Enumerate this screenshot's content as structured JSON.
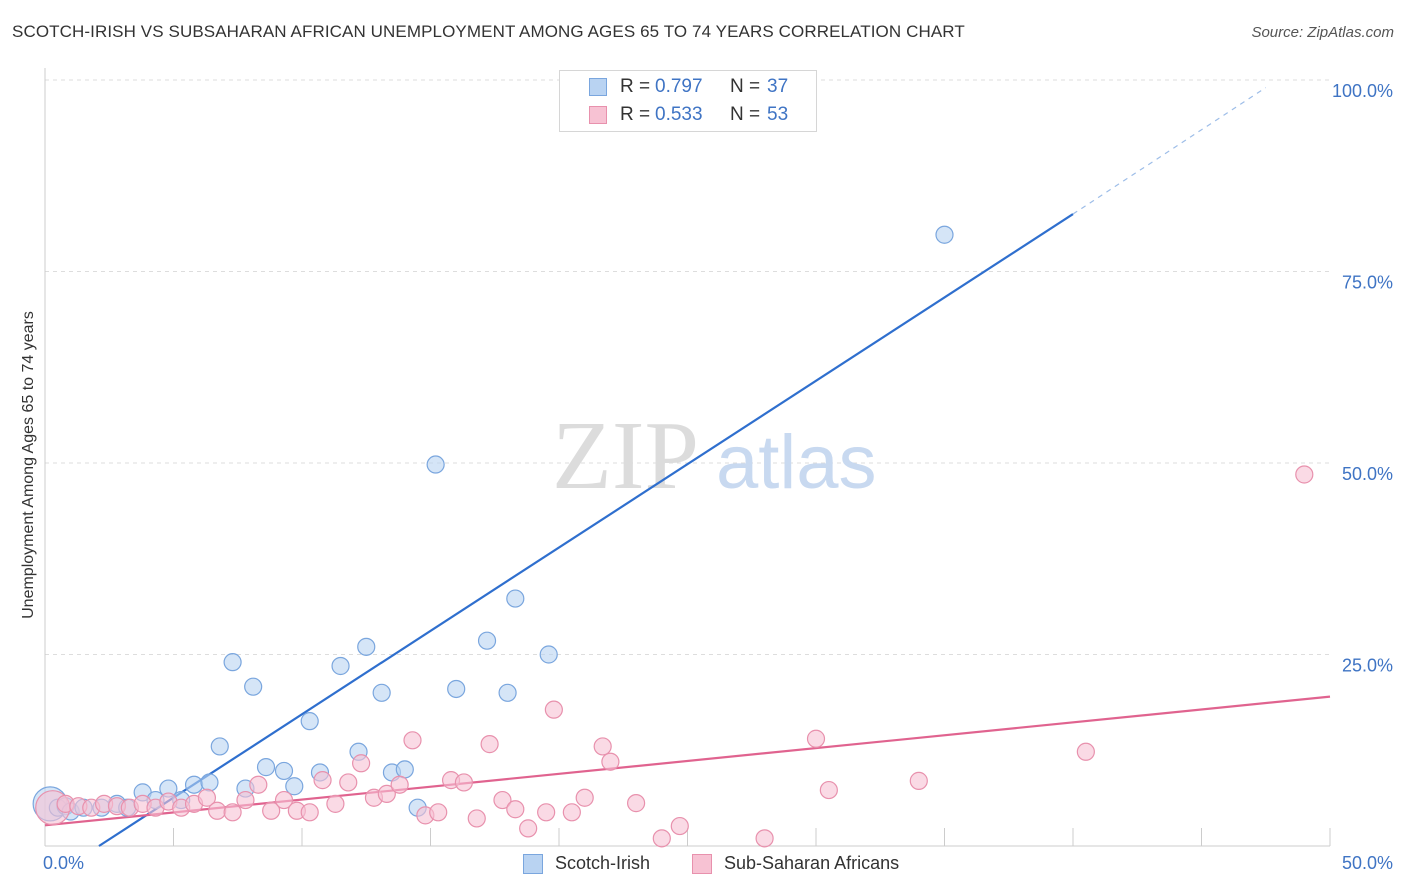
{
  "header": {
    "title": "SCOTCH-IRISH VS SUBSAHARAN AFRICAN UNEMPLOYMENT AMONG AGES 65 TO 74 YEARS CORRELATION CHART",
    "source": "Source: ZipAtlas.com"
  },
  "watermark": {
    "zip": "ZIP",
    "atlas": "atlas"
  },
  "legend_top": {
    "rows": [
      {
        "r_label": "R = ",
        "r_value": "0.797",
        "n_label": "N = ",
        "n_value": "37"
      },
      {
        "r_label": "R = ",
        "r_value": "0.533",
        "n_label": "N = ",
        "n_value": "53"
      }
    ]
  },
  "colors": {
    "scotch_irish_fill": "#b9d3f2",
    "scotch_irish_stroke": "#7aa6de",
    "scotch_irish_line": "#2f6fce",
    "subsaharan_fill": "#f7c2d3",
    "subsaharan_stroke": "#e891ad",
    "subsaharan_line": "#e0638f",
    "axis_text": "#3f74c4",
    "grid": "#dddddd"
  },
  "chart_data": {
    "type": "scatter",
    "title": "SCOTCH-IRISH VS SUBSAHARAN AFRICAN UNEMPLOYMENT AMONG AGES 65 TO 74 YEARS CORRELATION CHART",
    "xlabel": "",
    "ylabel": "Unemployment Among Ages 65 to 74 years",
    "xlim": [
      0,
      50
    ],
    "ylim": [
      0,
      100
    ],
    "x_ticks": [
      0,
      50
    ],
    "x_tick_labels": [
      "0.0%",
      "50.0%"
    ],
    "y_ticks": [
      25,
      50,
      75,
      100
    ],
    "y_tick_labels": [
      "25.0%",
      "50.0%",
      "75.0%",
      "100.0%"
    ],
    "grid": true,
    "legend_position": "bottom",
    "series": [
      {
        "name": "Scotch-Irish",
        "r": 0.797,
        "n": 37,
        "trend": {
          "x_start": 2.1,
          "y_start": 0,
          "x_end": 40.0,
          "y_end": 82.5,
          "dash_x_end": 47.5,
          "dash_y_end": 99.0
        },
        "points": [
          {
            "x": 0.2,
            "y": 5.5,
            "size": "large"
          },
          {
            "x": 0.5,
            "y": 5.0
          },
          {
            "x": 0.8,
            "y": 5.2
          },
          {
            "x": 1.0,
            "y": 4.5
          },
          {
            "x": 1.5,
            "y": 5.0
          },
          {
            "x": 2.2,
            "y": 5.0
          },
          {
            "x": 2.8,
            "y": 5.5
          },
          {
            "x": 3.2,
            "y": 5.0
          },
          {
            "x": 3.8,
            "y": 7.0
          },
          {
            "x": 4.3,
            "y": 6.0
          },
          {
            "x": 4.8,
            "y": 7.5
          },
          {
            "x": 5.3,
            "y": 6.0
          },
          {
            "x": 5.8,
            "y": 8.0
          },
          {
            "x": 6.4,
            "y": 8.3
          },
          {
            "x": 6.8,
            "y": 13.0
          },
          {
            "x": 7.3,
            "y": 24.0
          },
          {
            "x": 7.8,
            "y": 7.5
          },
          {
            "x": 8.1,
            "y": 20.8
          },
          {
            "x": 8.6,
            "y": 10.3
          },
          {
            "x": 9.3,
            "y": 9.8
          },
          {
            "x": 9.7,
            "y": 7.8
          },
          {
            "x": 10.3,
            "y": 16.3
          },
          {
            "x": 10.7,
            "y": 9.6
          },
          {
            "x": 11.5,
            "y": 23.5
          },
          {
            "x": 12.2,
            "y": 12.3
          },
          {
            "x": 12.5,
            "y": 26.0
          },
          {
            "x": 13.1,
            "y": 20.0
          },
          {
            "x": 13.5,
            "y": 9.6
          },
          {
            "x": 14.0,
            "y": 10.0
          },
          {
            "x": 14.5,
            "y": 5.0
          },
          {
            "x": 15.2,
            "y": 49.8
          },
          {
            "x": 16.0,
            "y": 20.5
          },
          {
            "x": 17.2,
            "y": 26.8
          },
          {
            "x": 18.0,
            "y": 20.0
          },
          {
            "x": 18.3,
            "y": 32.3
          },
          {
            "x": 19.6,
            "y": 25.0
          },
          {
            "x": 35.0,
            "y": 79.8
          }
        ]
      },
      {
        "name": "Sub-Saharan Africans",
        "r": 0.533,
        "n": 53,
        "trend": {
          "x_start": 0.0,
          "y_start": 2.7,
          "x_end": 50.0,
          "y_end": 19.5
        },
        "points": [
          {
            "x": 0.3,
            "y": 5.0,
            "size": "large"
          },
          {
            "x": 0.8,
            "y": 5.5
          },
          {
            "x": 1.3,
            "y": 5.2
          },
          {
            "x": 1.8,
            "y": 5.0
          },
          {
            "x": 2.3,
            "y": 5.5
          },
          {
            "x": 2.8,
            "y": 5.2
          },
          {
            "x": 3.3,
            "y": 5.0
          },
          {
            "x": 3.8,
            "y": 5.5
          },
          {
            "x": 4.3,
            "y": 5.0
          },
          {
            "x": 4.8,
            "y": 5.8
          },
          {
            "x": 5.3,
            "y": 5.0
          },
          {
            "x": 5.8,
            "y": 5.5
          },
          {
            "x": 6.3,
            "y": 6.3
          },
          {
            "x": 6.7,
            "y": 4.6
          },
          {
            "x": 7.3,
            "y": 4.4
          },
          {
            "x": 7.8,
            "y": 6.0
          },
          {
            "x": 8.3,
            "y": 8.0
          },
          {
            "x": 8.8,
            "y": 4.6
          },
          {
            "x": 9.3,
            "y": 6.0
          },
          {
            "x": 9.8,
            "y": 4.6
          },
          {
            "x": 10.3,
            "y": 4.4
          },
          {
            "x": 10.8,
            "y": 8.6
          },
          {
            "x": 11.3,
            "y": 5.5
          },
          {
            "x": 11.8,
            "y": 8.3
          },
          {
            "x": 12.3,
            "y": 10.8
          },
          {
            "x": 12.8,
            "y": 6.3
          },
          {
            "x": 13.3,
            "y": 6.8
          },
          {
            "x": 13.8,
            "y": 8.0
          },
          {
            "x": 14.3,
            "y": 13.8
          },
          {
            "x": 14.8,
            "y": 4.0
          },
          {
            "x": 15.3,
            "y": 4.4
          },
          {
            "x": 15.8,
            "y": 8.6
          },
          {
            "x": 16.3,
            "y": 8.3
          },
          {
            "x": 16.8,
            "y": 3.6
          },
          {
            "x": 17.3,
            "y": 13.3
          },
          {
            "x": 17.8,
            "y": 6.0
          },
          {
            "x": 18.3,
            "y": 4.8
          },
          {
            "x": 18.8,
            "y": 2.3
          },
          {
            "x": 19.5,
            "y": 4.4
          },
          {
            "x": 19.8,
            "y": 17.8
          },
          {
            "x": 20.5,
            "y": 4.4
          },
          {
            "x": 21.0,
            "y": 6.3
          },
          {
            "x": 21.7,
            "y": 13.0
          },
          {
            "x": 22.0,
            "y": 11.0
          },
          {
            "x": 23.0,
            "y": 5.6
          },
          {
            "x": 24.0,
            "y": 1.0
          },
          {
            "x": 24.7,
            "y": 2.6
          },
          {
            "x": 28.0,
            "y": 1.0
          },
          {
            "x": 30.0,
            "y": 14.0
          },
          {
            "x": 30.5,
            "y": 7.3
          },
          {
            "x": 34.0,
            "y": 8.5
          },
          {
            "x": 40.5,
            "y": 12.3
          },
          {
            "x": 49.0,
            "y": 48.5
          }
        ]
      }
    ]
  }
}
